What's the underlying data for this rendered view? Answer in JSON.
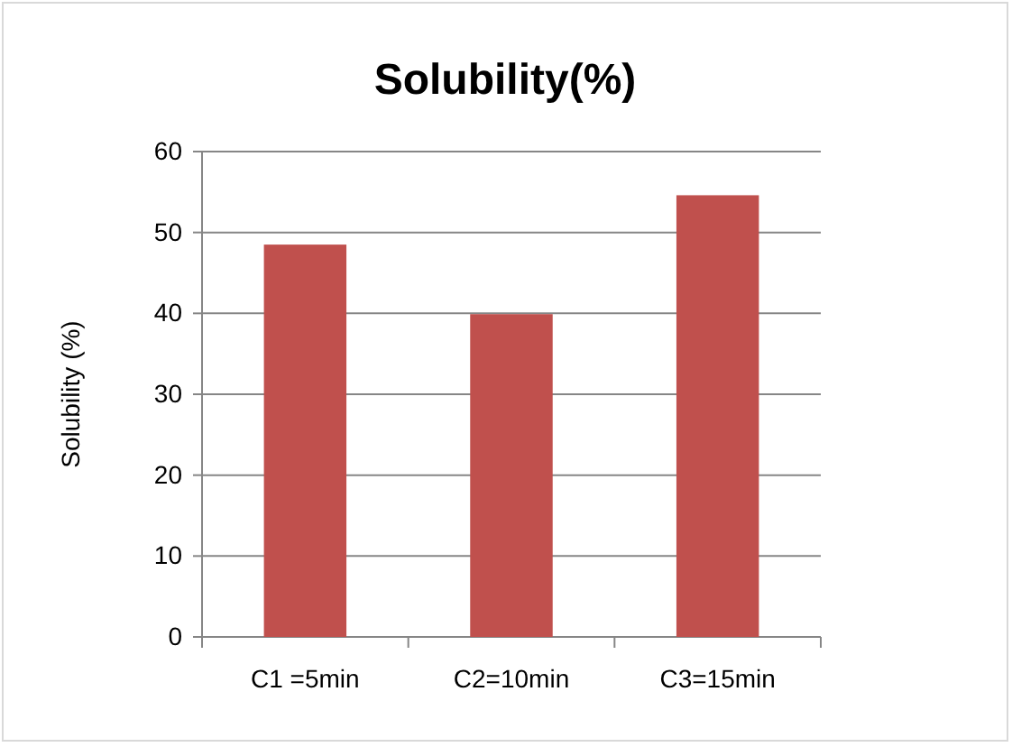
{
  "chart_data": {
    "type": "bar",
    "title": "Solubility(%)",
    "ylabel": "Solubility  (%)",
    "categories": [
      "C1 =5min",
      "C2=10min",
      "C3=15min"
    ],
    "values": [
      48.5,
      39.9,
      54.6
    ],
    "color": "#c0504d",
    "ylim": [
      0,
      60
    ],
    "yticks": [
      0,
      10,
      20,
      30,
      40,
      50,
      60
    ],
    "grid": "y"
  }
}
